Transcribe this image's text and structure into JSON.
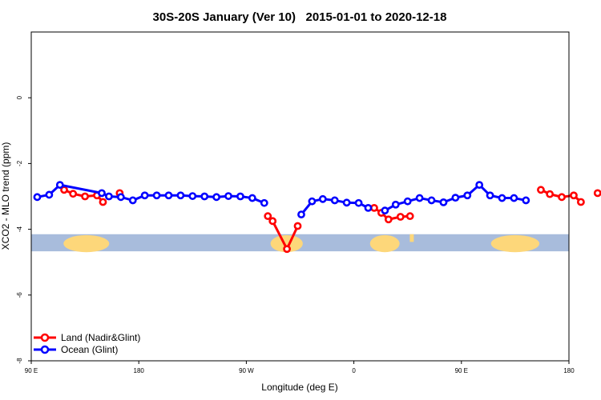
{
  "chart_data": {
    "type": "line",
    "title": "30S-20S January (Ver 10)   2015-01-01 to 2020-12-18",
    "xlabel": "Longitude (deg E)",
    "ylabel": "XCO2 - MLO trend (ppm)",
    "x_ticks": [
      {
        "value": 90,
        "label": "90 E"
      },
      {
        "value": 180,
        "label": "180"
      },
      {
        "value": 270,
        "label": "90 W"
      },
      {
        "value": 360,
        "label": "0"
      },
      {
        "value": 450,
        "label": "90 E"
      },
      {
        "value": 540,
        "label": "180"
      }
    ],
    "y_ticks": [
      {
        "value": 0,
        "label": "0"
      },
      {
        "value": -2,
        "label": "-2"
      },
      {
        "value": -4,
        "label": "-4"
      },
      {
        "value": -6,
        "label": "-6"
      },
      {
        "value": -8,
        "label": "-8"
      }
    ],
    "xlim": [
      90,
      540
    ],
    "ylim": [
      -8,
      2
    ],
    "grid": false,
    "legend_position": "bottom-left",
    "map_strip": {
      "y_range": [
        -4.67,
        -4.15
      ],
      "ocean_color": "#a8bcdc",
      "land_color": "#fdd77a"
    },
    "series": [
      {
        "name": "Land (Nadir&Glint)",
        "color": "#ff0000",
        "segments": [
          [
            [
              117.5,
              -2.8
            ],
            [
              125,
              -2.92
            ],
            [
              135,
              -3.0
            ],
            [
              145,
              -2.97
            ],
            [
              150,
              -3.17
            ]
          ],
          [
            [
              164,
              -2.9
            ]
          ],
          [
            [
              288,
              -3.6
            ],
            [
              292,
              -3.75
            ],
            [
              304,
              -4.6
            ],
            [
              313,
              -3.9
            ]
          ],
          [
            [
              377,
              -3.35
            ],
            [
              383,
              -3.5
            ],
            [
              389,
              -3.7
            ],
            [
              399,
              -3.62
            ],
            [
              407,
              -3.6
            ]
          ],
          [
            [
              516.5,
              -2.8
            ],
            [
              524,
              -2.93
            ],
            [
              534,
              -3.02
            ],
            [
              544,
              -2.97
            ],
            [
              550,
              -3.17
            ]
          ],
          [
            [
              564,
              -2.9
            ]
          ]
        ]
      },
      {
        "name": "Ocean (Glint)",
        "color": "#0000ff",
        "segments": [
          [
            [
              95,
              -3.02
            ],
            [
              105,
              -2.95
            ],
            [
              114,
              -2.65
            ],
            [
              149,
              -2.9
            ],
            [
              155,
              -3.0
            ],
            [
              165,
              -3.02
            ],
            [
              175,
              -3.12
            ],
            [
              185,
              -2.97
            ],
            [
              195,
              -2.97
            ],
            [
              205,
              -2.97
            ],
            [
              215,
              -2.97
            ],
            [
              225,
              -2.99
            ],
            [
              235,
              -3.0
            ],
            [
              245,
              -3.02
            ],
            [
              255,
              -2.99
            ],
            [
              265,
              -3.0
            ],
            [
              275,
              -3.05
            ],
            [
              285,
              -3.2
            ]
          ],
          [
            [
              316,
              -3.55
            ],
            [
              325,
              -3.15
            ],
            [
              334,
              -3.08
            ],
            [
              344,
              -3.12
            ],
            [
              354,
              -3.19
            ],
            [
              364,
              -3.2
            ],
            [
              372,
              -3.35
            ]
          ],
          [
            [
              386,
              -3.43
            ],
            [
              395,
              -3.25
            ],
            [
              405,
              -3.15
            ],
            [
              415,
              -3.05
            ],
            [
              425,
              -3.12
            ],
            [
              435,
              -3.18
            ],
            [
              445,
              -3.04
            ],
            [
              455,
              -2.97
            ],
            [
              465,
              -2.65
            ],
            [
              474,
              -2.97
            ],
            [
              484,
              -3.05
            ],
            [
              494,
              -3.05
            ],
            [
              504,
              -3.12
            ]
          ]
        ]
      }
    ]
  }
}
